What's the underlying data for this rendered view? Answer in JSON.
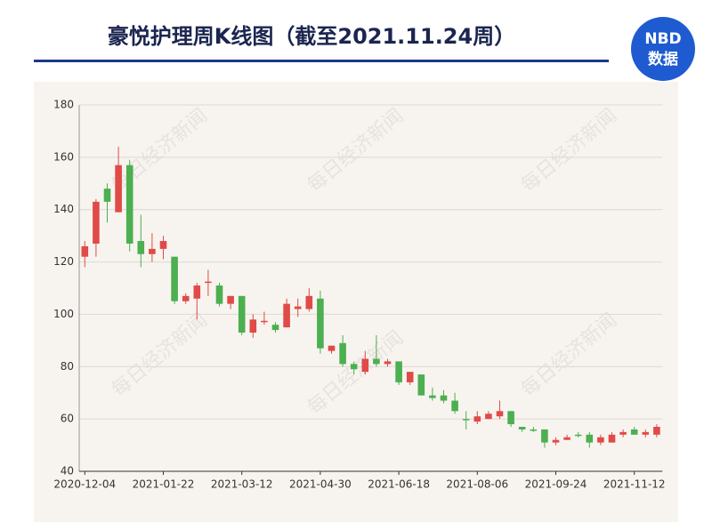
{
  "header": {
    "title": "豪悦护理周K线图（截至2021.11.24周）",
    "logo_top": "NBD",
    "logo_bottom": "数据"
  },
  "watermark": "每日经济新闻",
  "chart_data": {
    "type": "candlestick",
    "categories": [
      "2020-12-04",
      null,
      null,
      null,
      null,
      null,
      null,
      "2021-01-22",
      null,
      null,
      null,
      null,
      null,
      null,
      "2021-03-12",
      null,
      null,
      null,
      null,
      null,
      null,
      "2021-04-30",
      null,
      null,
      null,
      null,
      null,
      null,
      "2021-06-18",
      null,
      null,
      null,
      null,
      null,
      null,
      "2021-08-06",
      null,
      null,
      null,
      null,
      null,
      null,
      "2021-09-24",
      null,
      null,
      null,
      null,
      null,
      null,
      "2021-11-12",
      null,
      null
    ],
    "open": [
      122,
      127,
      148,
      139,
      157,
      128,
      123,
      125,
      122,
      105,
      106,
      112,
      111,
      104,
      107,
      93,
      97,
      96,
      95,
      102,
      102,
      106,
      86,
      89,
      81,
      78,
      83,
      81,
      82,
      74,
      77,
      69,
      69,
      67,
      60,
      59,
      60,
      61,
      63,
      57,
      56,
      56,
      51,
      52,
      54,
      54,
      51,
      51,
      54,
      56,
      54,
      54
    ],
    "high": [
      128,
      144,
      150,
      164,
      159,
      138,
      131,
      130,
      122,
      108,
      112,
      117,
      112,
      107,
      107,
      100,
      101,
      97,
      106,
      106,
      110,
      109,
      88,
      92,
      82,
      86,
      92,
      83,
      82,
      78,
      77,
      72,
      71,
      70,
      63,
      63,
      63,
      67,
      63,
      57,
      57,
      56,
      53,
      54,
      55,
      55,
      54,
      55,
      56,
      57,
      56,
      58
    ],
    "low": [
      118,
      122,
      135,
      139,
      124,
      118,
      120,
      121,
      104,
      104,
      98,
      107,
      103,
      102,
      92,
      91,
      96,
      93,
      95,
      99,
      101,
      85,
      85,
      80,
      77,
      77,
      80,
      80,
      73,
      73,
      69,
      67,
      66,
      62,
      56,
      58,
      60,
      60,
      57,
      55,
      55,
      49,
      50,
      52,
      53,
      49,
      50,
      51,
      53,
      54,
      53,
      53
    ],
    "close": [
      126,
      143,
      143,
      157,
      127,
      123,
      125,
      128,
      105,
      107,
      111,
      112.5,
      104,
      107,
      93,
      98,
      97.5,
      94,
      104,
      103,
      107,
      87,
      88,
      81,
      79,
      83,
      81,
      82,
      74,
      78,
      69,
      68,
      67,
      63,
      59.5,
      61,
      62,
      63,
      58,
      56,
      55.5,
      51,
      52,
      53,
      53.5,
      51,
      53,
      54,
      55,
      54,
      55,
      57
    ],
    "up_color": "#e04a48",
    "down_color": "#4caf50",
    "ylim": [
      40,
      180
    ],
    "yticks": [
      40,
      60,
      80,
      100,
      120,
      140,
      160,
      180
    ],
    "grid": true
  }
}
